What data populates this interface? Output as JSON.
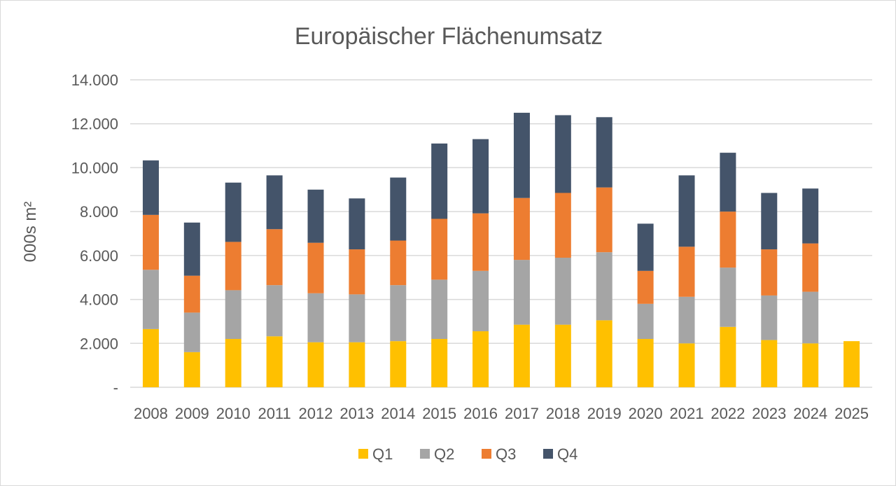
{
  "chart_data": {
    "type": "bar",
    "stacked": true,
    "title": "Europäischer Flächenumsatz",
    "xlabel": "",
    "ylabel": "000s m²",
    "ylim": [
      0,
      14000
    ],
    "yticks": [
      0,
      2000,
      4000,
      6000,
      8000,
      10000,
      12000,
      14000
    ],
    "ytick_labels": [
      "-",
      "2.000",
      "4.000",
      "6.000",
      "8.000",
      "10.000",
      "12.000",
      "14.000"
    ],
    "grid": true,
    "legend_position": "bottom",
    "categories": [
      "2008",
      "2009",
      "2010",
      "2011",
      "2012",
      "2013",
      "2014",
      "2015",
      "2016",
      "2017",
      "2018",
      "2019",
      "2020",
      "2021",
      "2022",
      "2023",
      "2024",
      "2025"
    ],
    "series": [
      {
        "name": "Q1",
        "color": "#ffc000",
        "values": [
          2650,
          1600,
          2200,
          2320,
          2050,
          2050,
          2100,
          2200,
          2550,
          2850,
          2850,
          3050,
          2200,
          2000,
          2750,
          2150,
          2000,
          2100
        ]
      },
      {
        "name": "Q2",
        "color": "#a5a5a5",
        "values": [
          2700,
          1800,
          2220,
          2330,
          2230,
          2180,
          2550,
          2700,
          2750,
          2950,
          3050,
          3100,
          1600,
          2120,
          2700,
          2030,
          2350,
          null
        ]
      },
      {
        "name": "Q3",
        "color": "#ed7d31",
        "values": [
          2500,
          1680,
          2200,
          2550,
          2300,
          2050,
          2030,
          2770,
          2620,
          2820,
          2950,
          2950,
          1500,
          2280,
          2550,
          2100,
          2200,
          null
        ]
      },
      {
        "name": "Q4",
        "color": "#44546a",
        "values": [
          2480,
          2420,
          2700,
          2450,
          2420,
          2320,
          2870,
          3430,
          3380,
          3880,
          3540,
          3200,
          2150,
          3250,
          2680,
          2570,
          2500,
          null
        ]
      }
    ]
  }
}
